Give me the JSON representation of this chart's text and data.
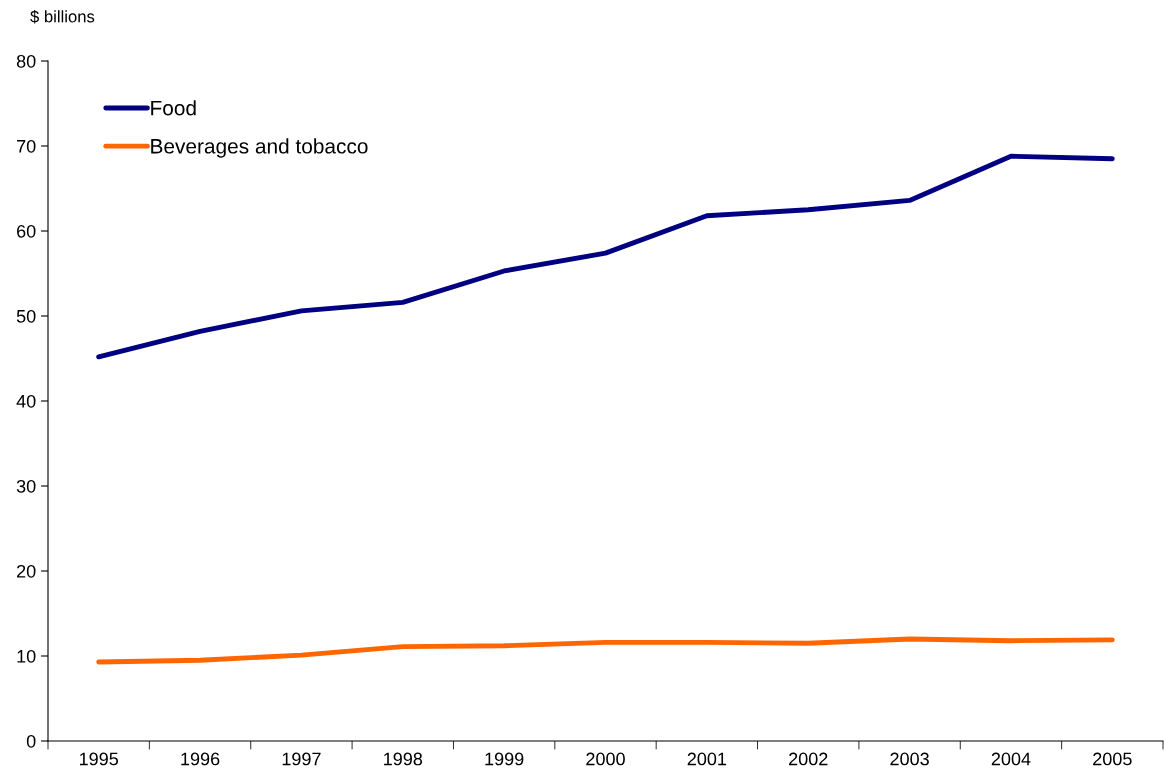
{
  "chart_data": {
    "type": "line",
    "ylabel": "$ billions",
    "categories": [
      "1995",
      "1996",
      "1997",
      "1998",
      "1999",
      "2000",
      "2001",
      "2002",
      "2003",
      "2004",
      "2005"
    ],
    "series": [
      {
        "name": "Food",
        "color": "#000080",
        "values": [
          45.2,
          48.2,
          50.6,
          51.6,
          55.3,
          57.4,
          61.8,
          62.5,
          63.6,
          68.8,
          68.5
        ]
      },
      {
        "name": "Beverages and tobacco",
        "color": "#ff6600",
        "values": [
          9.3,
          9.5,
          10.1,
          11.1,
          11.2,
          11.6,
          11.6,
          11.5,
          12.0,
          11.8,
          11.9
        ]
      }
    ],
    "ylim": [
      0,
      80
    ],
    "yticks": [
      0,
      10,
      20,
      30,
      40,
      50,
      60,
      70,
      80
    ],
    "grid": false,
    "legend": "top left",
    "marker": "none",
    "line_style": "solid"
  }
}
